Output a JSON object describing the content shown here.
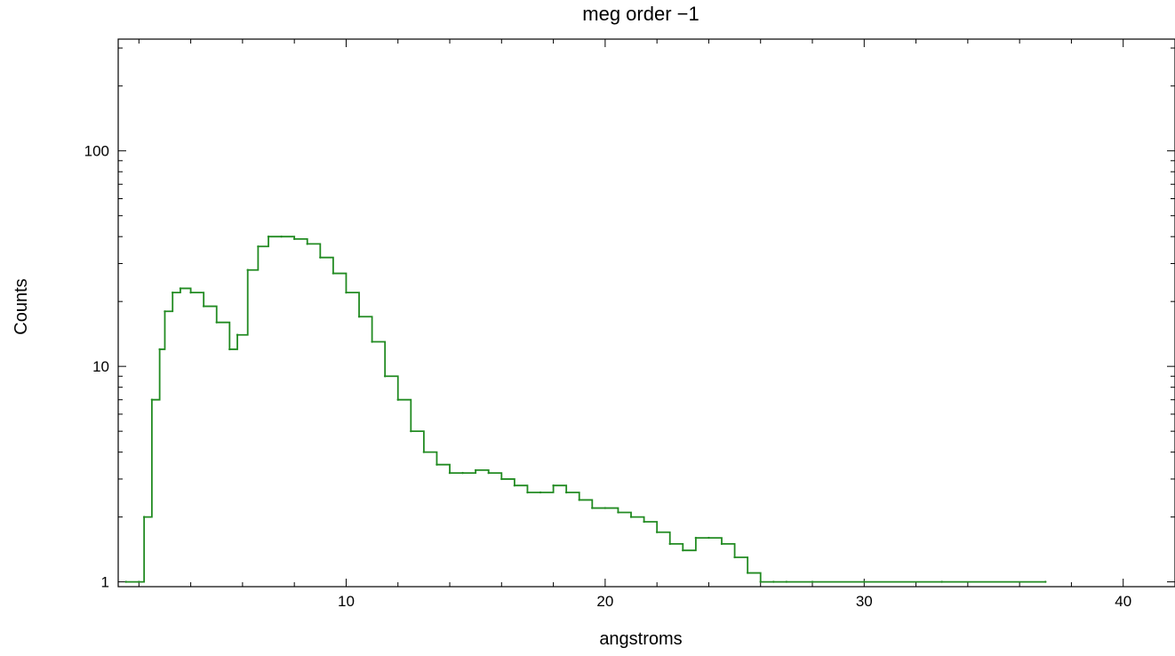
{
  "chart_data": {
    "type": "line",
    "title": "meg order −1",
    "xlabel": "angstroms",
    "ylabel": "Counts",
    "xlim": [
      1.2,
      42
    ],
    "ylim": [
      0.95,
      330
    ],
    "yscale": "log",
    "grid": false,
    "legend": "none",
    "x_ticks": [
      10,
      20,
      30,
      40
    ],
    "x_tick_labels": [
      "10",
      "20",
      "30",
      "40"
    ],
    "y_ticks": [
      1,
      10,
      100
    ],
    "y_tick_labels": [
      "1",
      "10",
      "100"
    ],
    "series": [
      {
        "color": "#228B22",
        "x": [
          1.5,
          2.0,
          2.2,
          2.5,
          2.8,
          3.0,
          3.3,
          3.6,
          4.0,
          4.5,
          5.0,
          5.5,
          5.8,
          6.2,
          6.6,
          7.0,
          7.5,
          8.0,
          8.5,
          9.0,
          9.5,
          10.0,
          10.5,
          11.0,
          11.5,
          12.0,
          12.5,
          13.0,
          13.5,
          14.0,
          14.5,
          15.0,
          15.5,
          16.0,
          16.5,
          17.0,
          17.5,
          18.0,
          18.5,
          19.0,
          19.5,
          20.0,
          20.5,
          21.0,
          21.5,
          22.0,
          22.5,
          23.0,
          23.5,
          24.0,
          24.5,
          25.0,
          25.5,
          26.0,
          26.5,
          27.0,
          28.0,
          30.0,
          33.0,
          37.0
        ],
        "y": [
          1,
          1,
          2,
          7,
          12,
          18,
          22,
          23,
          22,
          19,
          16,
          12,
          14,
          28,
          36,
          40,
          40,
          39,
          37,
          32,
          27,
          22,
          17,
          13,
          9,
          7,
          5,
          4,
          3.5,
          3.2,
          3.2,
          3.3,
          3.2,
          3,
          2.8,
          2.6,
          2.6,
          2.8,
          2.6,
          2.4,
          2.2,
          2.2,
          2.1,
          2.0,
          1.9,
          1.7,
          1.5,
          1.4,
          1.6,
          1.6,
          1.5,
          1.3,
          1.1,
          1,
          1,
          1,
          1,
          1,
          1,
          1
        ]
      }
    ]
  }
}
